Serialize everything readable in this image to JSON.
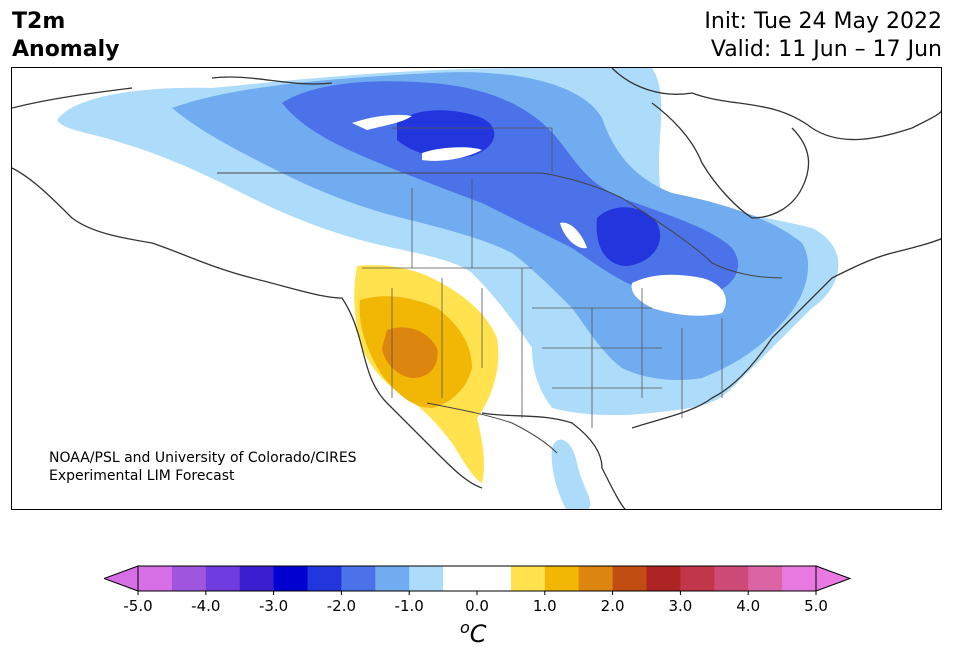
{
  "title": {
    "variable_line1": "T2m",
    "variable_line2": "Anomaly",
    "init": "Init: Tue 24 May 2022",
    "valid": "Valid: 11 Jun – 17 Jun"
  },
  "credit": {
    "line1": "NOAA/PSL and University of Colorado/CIRES",
    "line2": "Experimental LIM Forecast"
  },
  "colorbar": {
    "unit_symbol": "o",
    "unit_letter": "C",
    "min": -5.0,
    "max": 5.0,
    "step": 0.5,
    "ticks": [
      "-5.0",
      "-4.0",
      "-3.0",
      "-2.0",
      "-1.0",
      "0.0",
      "1.0",
      "2.0",
      "3.0",
      "4.0",
      "5.0"
    ],
    "under_color": "#d66ee6",
    "over_color": "#e879e0",
    "colors": [
      "#d66ee6",
      "#a055de",
      "#6f3ddf",
      "#3a1ed0",
      "#0000d0",
      "#2336dd",
      "#4b72e8",
      "#72acf0",
      "#addcfb",
      "#ffffff",
      "#ffffff",
      "#ffe24d",
      "#f2b705",
      "#dc860f",
      "#c24d12",
      "#ae2323",
      "#c2364a",
      "#cf4b77",
      "#db64a5",
      "#e879e0"
    ]
  },
  "map": {
    "region": "North America",
    "shading_colors": {
      "minus_half": "#addcfb",
      "minus_one": "#72acf0",
      "minus_oneandhalf": "#4b72e8",
      "minus_two": "#2336dd",
      "plus_half": "#ffe24d",
      "plus_one": "#f2b705",
      "plus_oneandhalf": "#dc860f"
    }
  }
}
